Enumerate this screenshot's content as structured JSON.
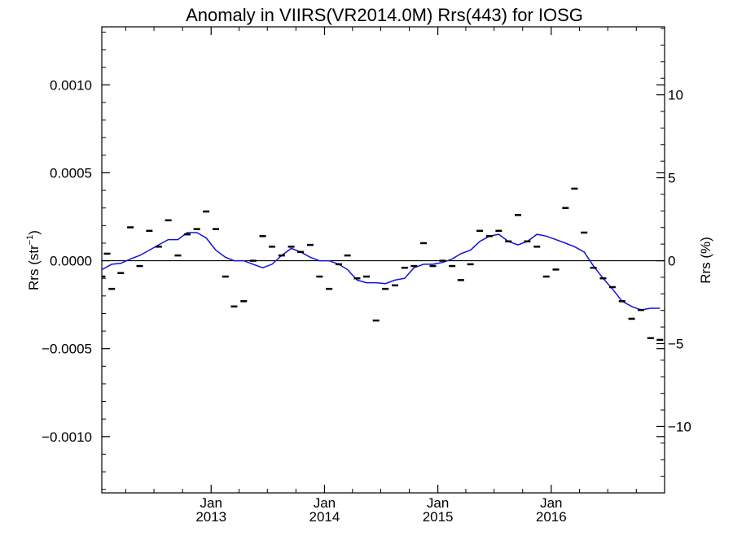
{
  "chart_data": {
    "type": "scatter",
    "title": "Anomaly in VIIRS(VR2014.0M) Rrs(443) for IOSG",
    "ylabel": "Rrs (str",
    "ylabel_sup": "−1",
    "ylabel_close": ")",
    "y2label": "Rrs (%)",
    "xlim": [
      "2012-01-15",
      "2016-12-31"
    ],
    "ylim": [
      -0.00132,
      0.00133
    ],
    "y2lim": [
      -14.0,
      14.1
    ],
    "x_ticks": [
      {
        "value": "2013-01-01",
        "top": "Jan",
        "bottom": "2013"
      },
      {
        "value": "2014-01-01",
        "top": "Jan",
        "bottom": "2014"
      },
      {
        "value": "2015-01-01",
        "top": "Jan",
        "bottom": "2015"
      },
      {
        "value": "2016-01-01",
        "top": "Jan",
        "bottom": "2016"
      }
    ],
    "y_ticks": [
      {
        "value": 0.001,
        "label": "0.0010"
      },
      {
        "value": 0.0005,
        "label": "0.0005"
      },
      {
        "value": 0.0,
        "label": "0.0000"
      },
      {
        "value": -0.0005,
        "label": "−0.0005"
      },
      {
        "value": -0.001,
        "label": "−0.0010"
      }
    ],
    "y2_ticks": [
      {
        "value": 10,
        "label": "10"
      },
      {
        "value": 5,
        "label": "5"
      },
      {
        "value": 0,
        "label": "0"
      },
      {
        "value": -5,
        "label": "−5"
      },
      {
        "value": -10,
        "label": "−10"
      }
    ],
    "zero_line": 0.0,
    "colors": {
      "smooth_line": "#1010e0",
      "points": "#000000",
      "axes": "#000000"
    },
    "series": [
      {
        "kind": "points",
        "x": [
          "2012-01-16",
          "2012-02-01",
          "2012-02-16",
          "2012-03-16",
          "2012-04-16",
          "2012-05-16",
          "2012-06-16",
          "2012-07-16",
          "2012-08-16",
          "2012-09-16",
          "2012-10-16",
          "2012-11-16",
          "2012-12-16",
          "2013-01-16",
          "2013-02-16",
          "2013-03-16",
          "2013-04-16",
          "2013-05-16",
          "2013-06-16",
          "2013-07-16",
          "2013-08-16",
          "2013-09-16",
          "2013-10-16",
          "2013-11-16",
          "2013-12-16",
          "2014-01-16",
          "2014-02-16",
          "2014-03-16",
          "2014-04-16",
          "2014-05-16",
          "2014-06-16",
          "2014-07-16",
          "2014-08-16",
          "2014-09-16",
          "2014-10-16",
          "2014-11-16",
          "2014-12-16",
          "2015-01-16",
          "2015-02-16",
          "2015-03-16",
          "2015-04-16",
          "2015-05-16",
          "2015-06-16",
          "2015-07-16",
          "2015-08-16",
          "2015-09-16",
          "2015-10-16",
          "2015-11-16",
          "2015-12-16",
          "2016-01-16",
          "2016-02-16",
          "2016-03-16",
          "2016-04-16",
          "2016-05-16",
          "2016-06-16",
          "2016-07-16",
          "2016-08-16",
          "2016-09-16",
          "2016-10-16",
          "2016-11-16",
          "2016-12-16"
        ],
        "y": [
          -9e-05,
          4e-05,
          -0.00016,
          -7e-05,
          0.00019,
          -3e-05,
          0.00017,
          8e-05,
          0.00023,
          3e-05,
          0.00015,
          0.00018,
          0.00028,
          0.00018,
          -9e-05,
          -0.00026,
          -0.00023,
          0.0,
          0.00014,
          8e-05,
          3e-05,
          8e-05,
          5e-05,
          9e-05,
          -9e-05,
          -0.00016,
          -2e-05,
          3e-05,
          -0.0001,
          -9e-05,
          -0.00034,
          -0.00016,
          -0.00014,
          -4e-05,
          -3e-05,
          0.0001,
          -3e-05,
          0.0,
          -3e-05,
          -0.00011,
          -2e-05,
          0.00017,
          0.00014,
          0.00017,
          0.00011,
          0.00026,
          0.00011,
          8e-05,
          -9e-05,
          -5e-05,
          0.0003,
          0.00041,
          0.00016,
          -4e-05,
          -0.0001,
          -0.00015,
          -0.00023,
          -0.00033,
          -0.00028,
          -0.00044,
          -0.00045
        ]
      },
      {
        "kind": "line",
        "x": [
          "2012-01-16",
          "2012-02-16",
          "2012-03-16",
          "2012-04-16",
          "2012-05-16",
          "2012-06-16",
          "2012-07-16",
          "2012-08-16",
          "2012-09-16",
          "2012-10-16",
          "2012-11-16",
          "2012-12-16",
          "2013-01-16",
          "2013-02-16",
          "2013-03-16",
          "2013-04-16",
          "2013-05-16",
          "2013-06-16",
          "2013-07-16",
          "2013-08-16",
          "2013-09-16",
          "2013-10-16",
          "2013-11-16",
          "2013-12-16",
          "2014-01-16",
          "2014-02-16",
          "2014-03-16",
          "2014-04-16",
          "2014-05-16",
          "2014-06-16",
          "2014-07-16",
          "2014-08-16",
          "2014-09-16",
          "2014-10-16",
          "2014-11-16",
          "2014-12-16",
          "2015-01-16",
          "2015-02-16",
          "2015-03-16",
          "2015-04-16",
          "2015-05-16",
          "2015-06-16",
          "2015-07-16",
          "2015-08-16",
          "2015-09-16",
          "2015-10-16",
          "2015-11-16",
          "2015-12-16",
          "2016-01-16",
          "2016-02-16",
          "2016-03-16",
          "2016-04-16",
          "2016-05-16",
          "2016-06-16",
          "2016-07-16",
          "2016-08-16",
          "2016-09-16",
          "2016-10-16",
          "2016-11-16",
          "2016-12-16"
        ],
        "y": [
          -5e-05,
          -2e-05,
          -1.5e-05,
          1e-05,
          3e-05,
          6e-05,
          9e-05,
          0.00012,
          0.00012,
          0.00016,
          0.00016,
          0.00013,
          6e-05,
          2e-05,
          0.0,
          0.0,
          -2e-05,
          -4e-05,
          -2e-05,
          3e-05,
          7e-05,
          5e-05,
          2e-05,
          0.0,
          0.0,
          -2e-05,
          -5e-05,
          -0.00011,
          -0.000125,
          -0.000125,
          -0.00013,
          -0.00011,
          -0.0001,
          -4e-05,
          -2e-05,
          -2e-05,
          -1e-05,
          1e-05,
          4e-05,
          6e-05,
          0.00011,
          0.00014,
          0.00015,
          0.00011,
          9e-05,
          0.00011,
          0.00015,
          0.00014,
          0.00012,
          0.0001,
          8e-05,
          5e-05,
          -3e-05,
          -0.0001,
          -0.00016,
          -0.00023,
          -0.00026,
          -0.00028,
          -0.00027,
          -0.00027
        ]
      }
    ]
  }
}
